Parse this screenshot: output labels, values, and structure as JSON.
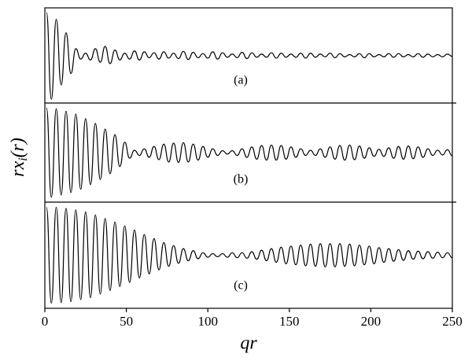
{
  "chart_data": {
    "type": "line",
    "xlabel": "qr",
    "ylabel": {
      "main": "rx",
      "sub": "i",
      "rest": "(r)"
    },
    "xlim": [
      0,
      250
    ],
    "xticks": [
      0,
      50,
      100,
      150,
      200,
      250
    ],
    "ylim": [
      -1,
      1
    ],
    "x": [
      1,
      4,
      7,
      10,
      13,
      16,
      19,
      22,
      25,
      28,
      31,
      34,
      37,
      40,
      43,
      46,
      49,
      52,
      55,
      58,
      61,
      64,
      67,
      70,
      73,
      76,
      79,
      82,
      85,
      88,
      91,
      94,
      97,
      100,
      103,
      106,
      109,
      112,
      115,
      118,
      121,
      124,
      127,
      130,
      133,
      136,
      139,
      142,
      145,
      148,
      151,
      154,
      157,
      160,
      163,
      166,
      169,
      172,
      175,
      178,
      181,
      184,
      187,
      190,
      193,
      196,
      199,
      202,
      205,
      208,
      211,
      214,
      217,
      220,
      223,
      226,
      229,
      232,
      235,
      238,
      241,
      244,
      247,
      250
    ],
    "series": [
      {
        "name": "(a)",
        "color": "#000000",
        "values": [
          0.95,
          -0.97,
          0.8,
          -0.65,
          0.5,
          -0.4,
          0.15,
          -0.08,
          0.05,
          -0.1,
          0.15,
          -0.15,
          0.2,
          -0.18,
          0.12,
          -0.1,
          0.05,
          -0.08,
          0.1,
          -0.1,
          0.08,
          -0.05,
          0.06,
          -0.08,
          0.08,
          -0.06,
          0.05,
          -0.07,
          0.09,
          -0.09,
          0.07,
          -0.05,
          0.04,
          -0.06,
          0.08,
          -0.08,
          0.06,
          -0.04,
          0.03,
          -0.05,
          0.07,
          -0.07,
          0.06,
          -0.04,
          0.03,
          -0.04,
          0.06,
          -0.06,
          0.05,
          -0.04,
          0.03,
          -0.04,
          0.05,
          -0.06,
          0.05,
          -0.04,
          0.03,
          -0.03,
          0.05,
          -0.05,
          0.04,
          -0.03,
          0.02,
          -0.03,
          0.04,
          -0.05,
          0.04,
          -0.03,
          0.02,
          -0.03,
          0.04,
          -0.04,
          0.04,
          -0.03,
          0.02,
          -0.03,
          0.04,
          -0.04,
          0.03,
          -0.03,
          0.02,
          -0.03,
          0.03,
          -0.02
        ]
      },
      {
        "name": "(b)",
        "color": "#000000",
        "values": [
          0.95,
          -0.95,
          0.93,
          -0.9,
          0.88,
          -0.85,
          0.82,
          -0.78,
          0.72,
          -0.68,
          0.62,
          -0.57,
          0.5,
          -0.45,
          0.38,
          -0.3,
          0.22,
          -0.12,
          0.05,
          -0.06,
          0.08,
          -0.1,
          0.13,
          -0.15,
          0.18,
          -0.2,
          0.2,
          -0.21,
          0.21,
          -0.2,
          0.18,
          -0.16,
          0.13,
          -0.1,
          0.08,
          -0.06,
          0.04,
          -0.03,
          0.04,
          -0.06,
          0.08,
          -0.1,
          0.12,
          -0.14,
          0.15,
          -0.16,
          0.16,
          -0.16,
          0.15,
          -0.14,
          0.12,
          -0.1,
          0.08,
          -0.06,
          0.05,
          -0.06,
          0.08,
          -0.1,
          0.12,
          -0.14,
          0.15,
          -0.16,
          0.16,
          -0.15,
          0.14,
          -0.12,
          0.1,
          -0.08,
          0.07,
          -0.08,
          0.1,
          -0.12,
          0.13,
          -0.14,
          0.14,
          -0.13,
          0.12,
          -0.1,
          0.08,
          -0.06,
          0.05,
          -0.05,
          0.06,
          -0.07
        ]
      },
      {
        "name": "(c)",
        "color": "#000000",
        "values": [
          0.95,
          -0.95,
          0.95,
          -0.94,
          0.93,
          -0.92,
          0.9,
          -0.88,
          0.86,
          -0.84,
          0.8,
          -0.77,
          0.73,
          -0.7,
          0.66,
          -0.62,
          0.58,
          -0.54,
          0.5,
          -0.45,
          0.41,
          -0.37,
          0.33,
          -0.29,
          0.25,
          -0.22,
          0.19,
          -0.16,
          0.13,
          -0.11,
          0.09,
          -0.07,
          0.05,
          -0.04,
          0.03,
          -0.03,
          0.03,
          -0.04,
          0.05,
          -0.05,
          0.05,
          -0.06,
          0.07,
          -0.08,
          0.1,
          -0.11,
          0.13,
          -0.14,
          0.16,
          -0.17,
          0.18,
          -0.19,
          0.2,
          -0.21,
          0.22,
          -0.22,
          0.23,
          -0.23,
          0.23,
          -0.23,
          0.23,
          -0.22,
          0.22,
          -0.21,
          0.2,
          -0.19,
          0.18,
          -0.17,
          0.15,
          -0.14,
          0.13,
          -0.12,
          0.11,
          -0.1,
          0.09,
          -0.08,
          0.08,
          -0.07,
          0.07,
          -0.06,
          0.06,
          -0.05,
          0.05,
          -0.05
        ]
      }
    ]
  }
}
